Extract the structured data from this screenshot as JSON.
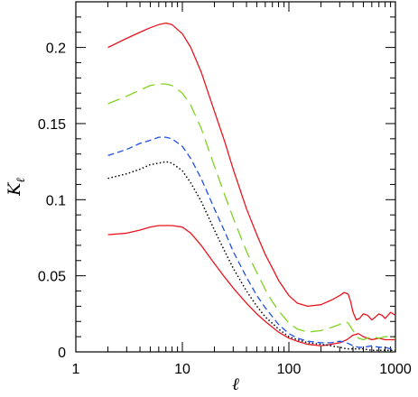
{
  "chart_data": {
    "type": "line",
    "title": "",
    "xlabel": "ℓ",
    "ylabel": {
      "main": "K",
      "subscript": "ℓ"
    },
    "xscale": "log",
    "xlim": [
      1,
      1000
    ],
    "ylim": [
      0,
      0.23
    ],
    "grid": false,
    "x_tick_labels": [
      "1",
      "10",
      "100",
      "1000"
    ],
    "y_tick_labels": [
      "0",
      "0.05",
      "0.1",
      "0.15",
      "0.2"
    ],
    "series": [
      {
        "style": "solid",
        "color": "#e8141e",
        "x": [
          2,
          3,
          4,
          5,
          6,
          7,
          8,
          10,
          12,
          15,
          20,
          25,
          30,
          40,
          50,
          60,
          70,
          80,
          100,
          120,
          150,
          200,
          250,
          300,
          330,
          360,
          380,
          400,
          430,
          460,
          500,
          550,
          600,
          650,
          700,
          750,
          800,
          850,
          900,
          950,
          1000
        ],
        "y": [
          0.2,
          0.206,
          0.21,
          0.213,
          0.215,
          0.216,
          0.215,
          0.209,
          0.2,
          0.184,
          0.158,
          0.138,
          0.12,
          0.094,
          0.077,
          0.064,
          0.055,
          0.047,
          0.037,
          0.032,
          0.03,
          0.031,
          0.034,
          0.037,
          0.039,
          0.038,
          0.033,
          0.026,
          0.021,
          0.022,
          0.025,
          0.024,
          0.021,
          0.023,
          0.025,
          0.024,
          0.022,
          0.024,
          0.026,
          0.025,
          0.024
        ]
      },
      {
        "style": "solid",
        "color": "#e8141e",
        "x": [
          2,
          3,
          4,
          5,
          6,
          7,
          8,
          10,
          12,
          15,
          20,
          25,
          30,
          40,
          50,
          60,
          80,
          100,
          120,
          150,
          200,
          250,
          300,
          350,
          400,
          450,
          500,
          600,
          700,
          800,
          900,
          1000
        ],
        "y": [
          0.077,
          0.078,
          0.08,
          0.082,
          0.083,
          0.083,
          0.083,
          0.082,
          0.078,
          0.07,
          0.058,
          0.049,
          0.042,
          0.032,
          0.025,
          0.02,
          0.013,
          0.009,
          0.007,
          0.005,
          0.004,
          0.005,
          0.006,
          0.008,
          0.011,
          0.012,
          0.01,
          0.008,
          0.009,
          0.008,
          0.008,
          0.008
        ]
      },
      {
        "style": "long-dash",
        "color": "#7ed321",
        "x": [
          2,
          3,
          4,
          5,
          6,
          7,
          8,
          10,
          12,
          15,
          20,
          25,
          30,
          40,
          50,
          60,
          70,
          80,
          100,
          120,
          150,
          200,
          250,
          300,
          330,
          360,
          400,
          450,
          500,
          600,
          700,
          800,
          900,
          1000
        ],
        "y": [
          0.163,
          0.168,
          0.172,
          0.175,
          0.176,
          0.176,
          0.175,
          0.17,
          0.162,
          0.147,
          0.122,
          0.103,
          0.088,
          0.066,
          0.052,
          0.041,
          0.033,
          0.027,
          0.019,
          0.015,
          0.013,
          0.014,
          0.016,
          0.018,
          0.02,
          0.019,
          0.014,
          0.009,
          0.008,
          0.01,
          0.009,
          0.01,
          0.01,
          0.009
        ]
      },
      {
        "style": "short-dash",
        "color": "#1e50e6",
        "x": [
          2,
          3,
          4,
          5,
          6,
          7,
          8,
          10,
          12,
          15,
          20,
          25,
          30,
          40,
          50,
          60,
          80,
          100,
          120,
          150,
          200,
          250,
          300,
          350,
          400,
          450,
          500,
          600,
          700,
          800,
          900,
          1000
        ],
        "y": [
          0.129,
          0.133,
          0.137,
          0.139,
          0.141,
          0.141,
          0.14,
          0.135,
          0.127,
          0.114,
          0.094,
          0.079,
          0.066,
          0.049,
          0.037,
          0.029,
          0.018,
          0.012,
          0.009,
          0.007,
          0.006,
          0.006,
          0.007,
          0.006,
          0.004,
          0.003,
          0.003,
          0.004,
          0.003,
          0.003,
          0.002,
          0.002
        ]
      },
      {
        "style": "dotted",
        "color": "#000000",
        "x": [
          2,
          3,
          4,
          5,
          6,
          7,
          8,
          10,
          12,
          15,
          20,
          25,
          30,
          40,
          50,
          60,
          80,
          100,
          120,
          150,
          200,
          250,
          300,
          350,
          400,
          450,
          500,
          600,
          700,
          800,
          900,
          1000
        ],
        "y": [
          0.114,
          0.117,
          0.12,
          0.123,
          0.124,
          0.125,
          0.124,
          0.119,
          0.111,
          0.099,
          0.08,
          0.066,
          0.055,
          0.04,
          0.03,
          0.023,
          0.015,
          0.01,
          0.008,
          0.006,
          0.005,
          0.004,
          0.003,
          0.002,
          0.002,
          0.002,
          0.002,
          0.001,
          0.001,
          0.001,
          0.001,
          0.001
        ]
      }
    ]
  }
}
